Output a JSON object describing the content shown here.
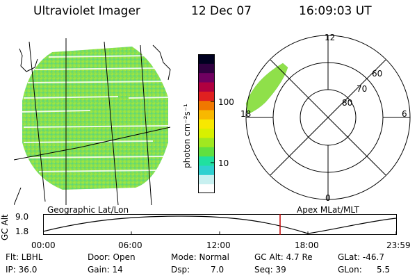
{
  "header": {
    "instrument": "Ultraviolet Imager",
    "date": "12 Dec 07",
    "time": "16:09:03 UT"
  },
  "left_panel": {
    "caption": "Geographic Lat/Lon"
  },
  "colorbar": {
    "unit_label": "photon cm⁻²s⁻¹",
    "ticks": [
      "100",
      "10"
    ],
    "colors": [
      "#ffffff",
      "#c8f0f0",
      "#30d0d0",
      "#20e0a0",
      "#60e040",
      "#a0e820",
      "#d8f000",
      "#f8e800",
      "#f8b800",
      "#f07800",
      "#e02020",
      "#b00040",
      "#700060",
      "#300040",
      "#000020"
    ]
  },
  "right_panel": {
    "caption": "Apex MLat/MLT",
    "mlt_labels": {
      "top": "12",
      "left": "18",
      "right": "6",
      "bottom": "0"
    },
    "lat_labels": [
      "60",
      "70",
      "80"
    ]
  },
  "timeline": {
    "ylabel": "GC Alt",
    "ytick_top": "9.0",
    "ytick_bottom": "1.8",
    "xticks": [
      "00:00",
      "06:00",
      "12:00",
      "18:00",
      "23:59"
    ],
    "marker_time": "16:09"
  },
  "status": {
    "flt": "Flt: LBHL",
    "ip": "IP: 36.0",
    "door": "Door: Open",
    "gain": "Gain: 14",
    "mode": "Mode: Normal",
    "dsp_label": "Dsp:",
    "dsp_value": "7.0",
    "gc_alt": "GC Alt: 4.7 Re",
    "seq": "Seq: 39",
    "glat": "GLat: -46.7",
    "glon_label": "GLon:",
    "glon_value": "5.5"
  },
  "accent_colors": {
    "aurora_green": "#8fe04a",
    "marker_red": "#c00000"
  }
}
